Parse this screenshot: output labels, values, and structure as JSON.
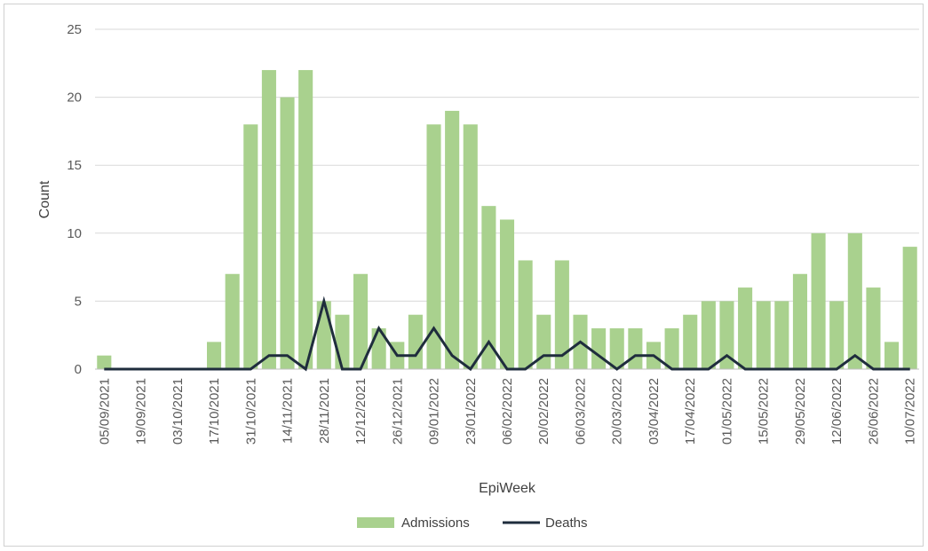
{
  "chart_data": {
    "type": "bar",
    "xlabel": "EpiWeek",
    "ylabel": "Count",
    "ylim": [
      0,
      25
    ],
    "yticks": [
      0,
      5,
      10,
      15,
      20,
      25
    ],
    "grid": true,
    "legend_position": "bottom",
    "colors": {
      "admissions": "#a9d18e",
      "deaths": "#1f2d3d",
      "grid": "#d9d9d9"
    },
    "categories": [
      "05/09/2021",
      "12/09/2021",
      "19/09/2021",
      "26/09/2021",
      "03/10/2021",
      "10/10/2021",
      "17/10/2021",
      "24/10/2021",
      "31/10/2021",
      "07/11/2021",
      "14/11/2021",
      "21/11/2021",
      "28/11/2021",
      "05/12/2021",
      "12/12/2021",
      "19/12/2021",
      "26/12/2021",
      "02/01/2022",
      "09/01/2022",
      "16/01/2022",
      "23/01/2022",
      "30/01/2022",
      "06/02/2022",
      "13/02/2022",
      "20/02/2022",
      "27/02/2022",
      "06/03/2022",
      "13/03/2022",
      "20/03/2022",
      "27/03/2022",
      "03/04/2022",
      "10/04/2022",
      "17/04/2022",
      "24/04/2022",
      "01/05/2022",
      "08/05/2022",
      "15/05/2022",
      "22/05/2022",
      "29/05/2022",
      "05/06/2022",
      "12/06/2022",
      "19/06/2022",
      "26/06/2022",
      "03/07/2022",
      "10/07/2022"
    ],
    "tick_labels": [
      "05/09/2021",
      "19/09/2021",
      "03/10/2021",
      "17/10/2021",
      "31/10/2021",
      "14/11/2021",
      "28/11/2021",
      "12/12/2021",
      "26/12/2021",
      "09/01/2022",
      "23/01/2022",
      "06/02/2022",
      "20/02/2022",
      "06/03/2022",
      "20/03/2022",
      "03/04/2022",
      "17/04/2022",
      "01/05/2022",
      "15/05/2022",
      "29/05/2022",
      "12/06/2022",
      "26/06/2022",
      "10/07/2022"
    ],
    "series": [
      {
        "name": "Admissions",
        "kind": "bar",
        "values": [
          1,
          0,
          0,
          0,
          0,
          0,
          2,
          7,
          18,
          22,
          20,
          22,
          5,
          4,
          7,
          3,
          2,
          4,
          18,
          19,
          18,
          12,
          11,
          8,
          4,
          8,
          4,
          3,
          3,
          3,
          2,
          3,
          4,
          5,
          5,
          6,
          5,
          5,
          7,
          10,
          5,
          10,
          6,
          2,
          9
        ]
      },
      {
        "name": "Deaths",
        "kind": "line",
        "values": [
          0,
          0,
          0,
          0,
          0,
          0,
          0,
          0,
          0,
          1,
          1,
          0,
          5,
          0,
          0,
          3,
          1,
          1,
          3,
          1,
          0,
          2,
          0,
          0,
          1,
          1,
          2,
          1,
          0,
          1,
          1,
          0,
          0,
          0,
          1,
          0,
          0,
          0,
          0,
          0,
          0,
          1,
          0,
          0,
          0
        ]
      }
    ]
  }
}
